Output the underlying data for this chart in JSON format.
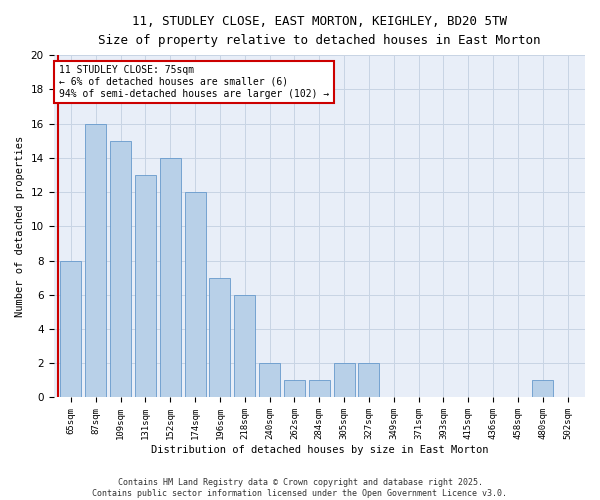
{
  "title": "11, STUDLEY CLOSE, EAST MORTON, KEIGHLEY, BD20 5TW",
  "subtitle": "Size of property relative to detached houses in East Morton",
  "xlabel": "Distribution of detached houses by size in East Morton",
  "ylabel": "Number of detached properties",
  "bins": [
    "65sqm",
    "87sqm",
    "109sqm",
    "131sqm",
    "152sqm",
    "174sqm",
    "196sqm",
    "218sqm",
    "240sqm",
    "262sqm",
    "284sqm",
    "305sqm",
    "327sqm",
    "349sqm",
    "371sqm",
    "393sqm",
    "415sqm",
    "436sqm",
    "458sqm",
    "480sqm",
    "502sqm"
  ],
  "values": [
    8,
    16,
    15,
    13,
    14,
    12,
    7,
    6,
    2,
    1,
    1,
    2,
    2,
    0,
    0,
    0,
    0,
    0,
    0,
    1,
    0
  ],
  "bar_color": "#b8d0e8",
  "bar_edge_color": "#6699cc",
  "annotation_text": "11 STUDLEY CLOSE: 75sqm\n← 6% of detached houses are smaller (6)\n94% of semi-detached houses are larger (102) →",
  "annotation_box_color": "#ffffff",
  "annotation_box_edge": "#cc0000",
  "ylim": [
    0,
    20
  ],
  "yticks": [
    0,
    2,
    4,
    6,
    8,
    10,
    12,
    14,
    16,
    18,
    20
  ],
  "footer": "Contains HM Land Registry data © Crown copyright and database right 2025.\nContains public sector information licensed under the Open Government Licence v3.0.",
  "background_color": "#ffffff",
  "plot_bg_color": "#e8eef8",
  "grid_color": "#c8d4e4",
  "red_line_color": "#cc0000"
}
